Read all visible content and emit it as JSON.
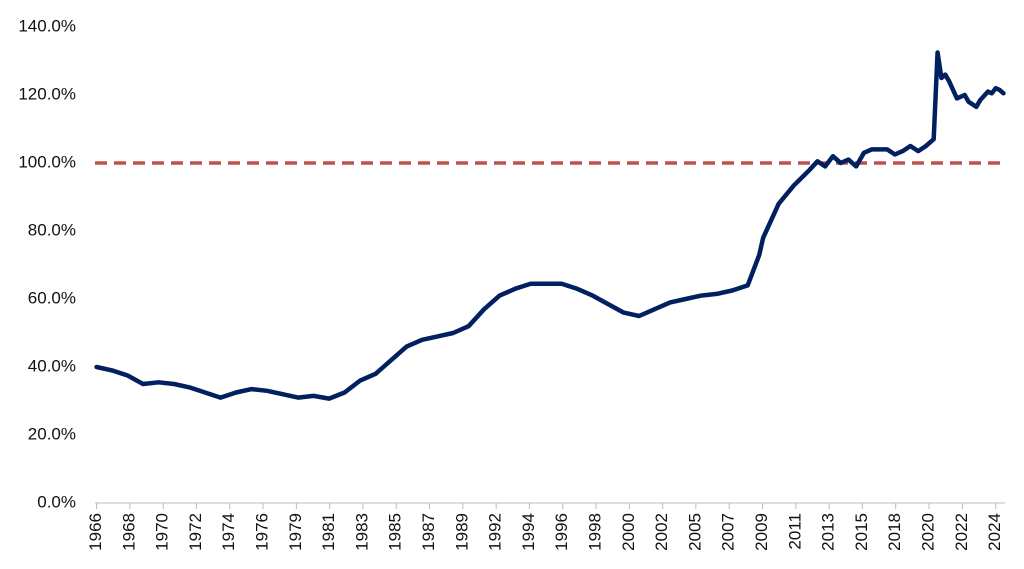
{
  "chart_data": {
    "type": "line",
    "x": [
      1966,
      1967,
      1968,
      1969,
      1970,
      1971,
      1972,
      1973,
      1974,
      1975,
      1976,
      1977,
      1978,
      1979,
      1980,
      1981,
      1982,
      1983,
      1984,
      1985,
      1986,
      1987,
      1988,
      1989,
      1990,
      1991,
      1992,
      1993,
      1994,
      1995,
      1996,
      1997,
      1998,
      1999,
      2000,
      2001,
      2002,
      2003,
      2004,
      2005,
      2006,
      2007,
      2008,
      2008.75,
      2009,
      2010,
      2011,
      2012,
      2012.5,
      2013,
      2013.5,
      2014,
      2014.5,
      2015,
      2015.5,
      2016,
      2017,
      2017.5,
      2018,
      2018.5,
      2019,
      2019.5,
      2020,
      2020.25,
      2020.5,
      2020.75,
      2021,
      2021.5,
      2022,
      2022.25,
      2022.75,
      2023,
      2023.5,
      2023.75,
      2024,
      2024.25,
      2024.5
    ],
    "series": [
      {
        "color": "#002060",
        "values": [
          40,
          39,
          37.5,
          35,
          35.5,
          35,
          34,
          32.5,
          31,
          32.5,
          33.5,
          33,
          32,
          31,
          31.5,
          30.7,
          32.5,
          36,
          38,
          42,
          46,
          48,
          49,
          50,
          52,
          57,
          61,
          63,
          64.5,
          64.5,
          64.5,
          63,
          61,
          58.5,
          56,
          55,
          57,
          59,
          60,
          61,
          61.5,
          62.5,
          64,
          73,
          78,
          88,
          93.5,
          98,
          100.5,
          99,
          102,
          100,
          101,
          99,
          103,
          104,
          104,
          102.5,
          103.5,
          105,
          103.5,
          105,
          107,
          132.5,
          125,
          126,
          124,
          119,
          120,
          118,
          116.5,
          118.5,
          121,
          120.5,
          122,
          121.5,
          120.5
        ]
      }
    ],
    "reference_line": {
      "value": 100,
      "color": "#c0504d"
    },
    "xlim": [
      1965.9,
      2024.6
    ],
    "xticks": [
      {
        "value": 1966,
        "label": "1966"
      },
      {
        "value": 1968.15,
        "label": "1968"
      },
      {
        "value": 1970.3,
        "label": "1970"
      },
      {
        "value": 1972.44,
        "label": "1972"
      },
      {
        "value": 1974.59,
        "label": "1974"
      },
      {
        "value": 1976.74,
        "label": "1976"
      },
      {
        "value": 1978.89,
        "label": "1979"
      },
      {
        "value": 1981.04,
        "label": "1981"
      },
      {
        "value": 1983.18,
        "label": "1983"
      },
      {
        "value": 1985.33,
        "label": "1985"
      },
      {
        "value": 1987.48,
        "label": "1987"
      },
      {
        "value": 1989.63,
        "label": "1989"
      },
      {
        "value": 1991.78,
        "label": "1992"
      },
      {
        "value": 1993.92,
        "label": "1994"
      },
      {
        "value": 1996.07,
        "label": "1996"
      },
      {
        "value": 1998.22,
        "label": "1998"
      },
      {
        "value": 2000.37,
        "label": "2000"
      },
      {
        "value": 2002.52,
        "label": "2002"
      },
      {
        "value": 2004.66,
        "label": "2005"
      },
      {
        "value": 2006.81,
        "label": "2007"
      },
      {
        "value": 2008.96,
        "label": "2009"
      },
      {
        "value": 2011.11,
        "label": "2011"
      },
      {
        "value": 2013.26,
        "label": "2013"
      },
      {
        "value": 2015.4,
        "label": "2015"
      },
      {
        "value": 2017.55,
        "label": "2018"
      },
      {
        "value": 2019.7,
        "label": "2020"
      },
      {
        "value": 2021.85,
        "label": "2022"
      },
      {
        "value": 2024,
        "label": "2024"
      }
    ],
    "ylim": [
      0,
      140
    ],
    "yticks": [
      {
        "value": 0,
        "label": "0.0%"
      },
      {
        "value": 20,
        "label": "20.0%"
      },
      {
        "value": 40,
        "label": "40.0%"
      },
      {
        "value": 60,
        "label": "60.0%"
      },
      {
        "value": 80,
        "label": "80.0%"
      },
      {
        "value": 100,
        "label": "100.0%"
      },
      {
        "value": 120,
        "label": "120.0%"
      },
      {
        "value": 140,
        "label": "140.0%"
      }
    ]
  }
}
